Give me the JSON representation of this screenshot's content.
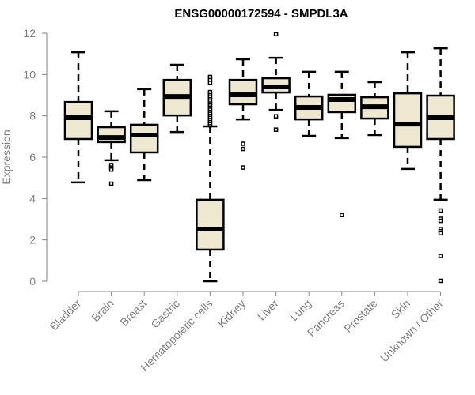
{
  "chart_data": {
    "type": "box",
    "title": "ENSG00000172594 - SMPDL3A",
    "xlabel": "",
    "ylabel": "Expression",
    "ylim": [
      0,
      12
    ],
    "yticks": [
      0,
      2,
      4,
      6,
      8,
      10,
      12
    ],
    "grid": false,
    "legend": "none",
    "box_fill": "#EEE8D0",
    "box_stroke": "#000000",
    "categories": [
      "Bladder",
      "Brain",
      "Breast",
      "Gastric",
      "Hematopoietic cells",
      "Kidney",
      "Liver",
      "Lung",
      "Pancreas",
      "Prostate",
      "Skin",
      "Unknown / Other"
    ],
    "boxes": [
      {
        "name": "Bladder",
        "whisker_low": 4.78,
        "q1": 6.88,
        "median": 7.91,
        "q3": 8.67,
        "whisker_high": 11.08,
        "outliers": []
      },
      {
        "name": "Brain",
        "whisker_low": 5.85,
        "q1": 6.73,
        "median": 6.95,
        "q3": 7.45,
        "whisker_high": 8.22,
        "outliers": [
          5.62,
          5.5,
          5.4,
          4.72
        ]
      },
      {
        "name": "Breast",
        "whisker_low": 4.89,
        "q1": 6.23,
        "median": 7.07,
        "q3": 7.57,
        "whisker_high": 9.29,
        "outliers": []
      },
      {
        "name": "Gastric",
        "whisker_low": 7.22,
        "q1": 8.02,
        "median": 8.94,
        "q3": 9.74,
        "whisker_high": 10.47,
        "outliers": []
      },
      {
        "name": "Hematopoietic cells",
        "whisker_low": 0.0,
        "q1": 1.53,
        "median": 2.52,
        "q3": 3.94,
        "whisker_high": 7.49,
        "outliers": [
          7.55,
          7.65,
          7.75,
          7.85,
          7.95,
          8.05,
          8.15,
          8.25,
          8.35,
          8.45,
          8.55,
          8.65,
          8.75,
          8.85,
          8.95,
          9.05,
          9.15,
          9.6,
          9.75,
          9.88
        ]
      },
      {
        "name": "Kidney",
        "whisker_low": 7.83,
        "q1": 8.56,
        "median": 9.02,
        "q3": 9.74,
        "whisker_high": 10.74,
        "outliers": [
          6.65,
          6.4,
          5.5
        ]
      },
      {
        "name": "Liver",
        "whisker_low": 8.29,
        "q1": 9.13,
        "median": 9.4,
        "q3": 9.82,
        "whisker_high": 10.81,
        "outliers": [
          11.95,
          7.98,
          7.33
        ]
      },
      {
        "name": "Lung",
        "whisker_low": 7.03,
        "q1": 7.83,
        "median": 8.41,
        "q3": 8.94,
        "whisker_high": 10.13,
        "outliers": []
      },
      {
        "name": "Pancreas",
        "whisker_low": 6.92,
        "q1": 8.18,
        "median": 8.79,
        "q3": 9.02,
        "whisker_high": 10.13,
        "outliers": [
          3.2
        ]
      },
      {
        "name": "Prostate",
        "whisker_low": 7.07,
        "q1": 7.87,
        "median": 8.44,
        "q3": 8.9,
        "whisker_high": 9.63,
        "outliers": []
      },
      {
        "name": "Skin",
        "whisker_low": 5.43,
        "q1": 6.5,
        "median": 7.6,
        "q3": 9.09,
        "whisker_high": 11.08,
        "outliers": []
      },
      {
        "name": "Unknown / Other",
        "whisker_low": 3.94,
        "q1": 6.88,
        "median": 7.91,
        "q3": 8.98,
        "whisker_high": 11.27,
        "outliers": [
          3.42,
          3.02,
          2.92,
          2.52,
          2.42,
          2.32,
          1.22,
          0.02
        ]
      }
    ]
  }
}
